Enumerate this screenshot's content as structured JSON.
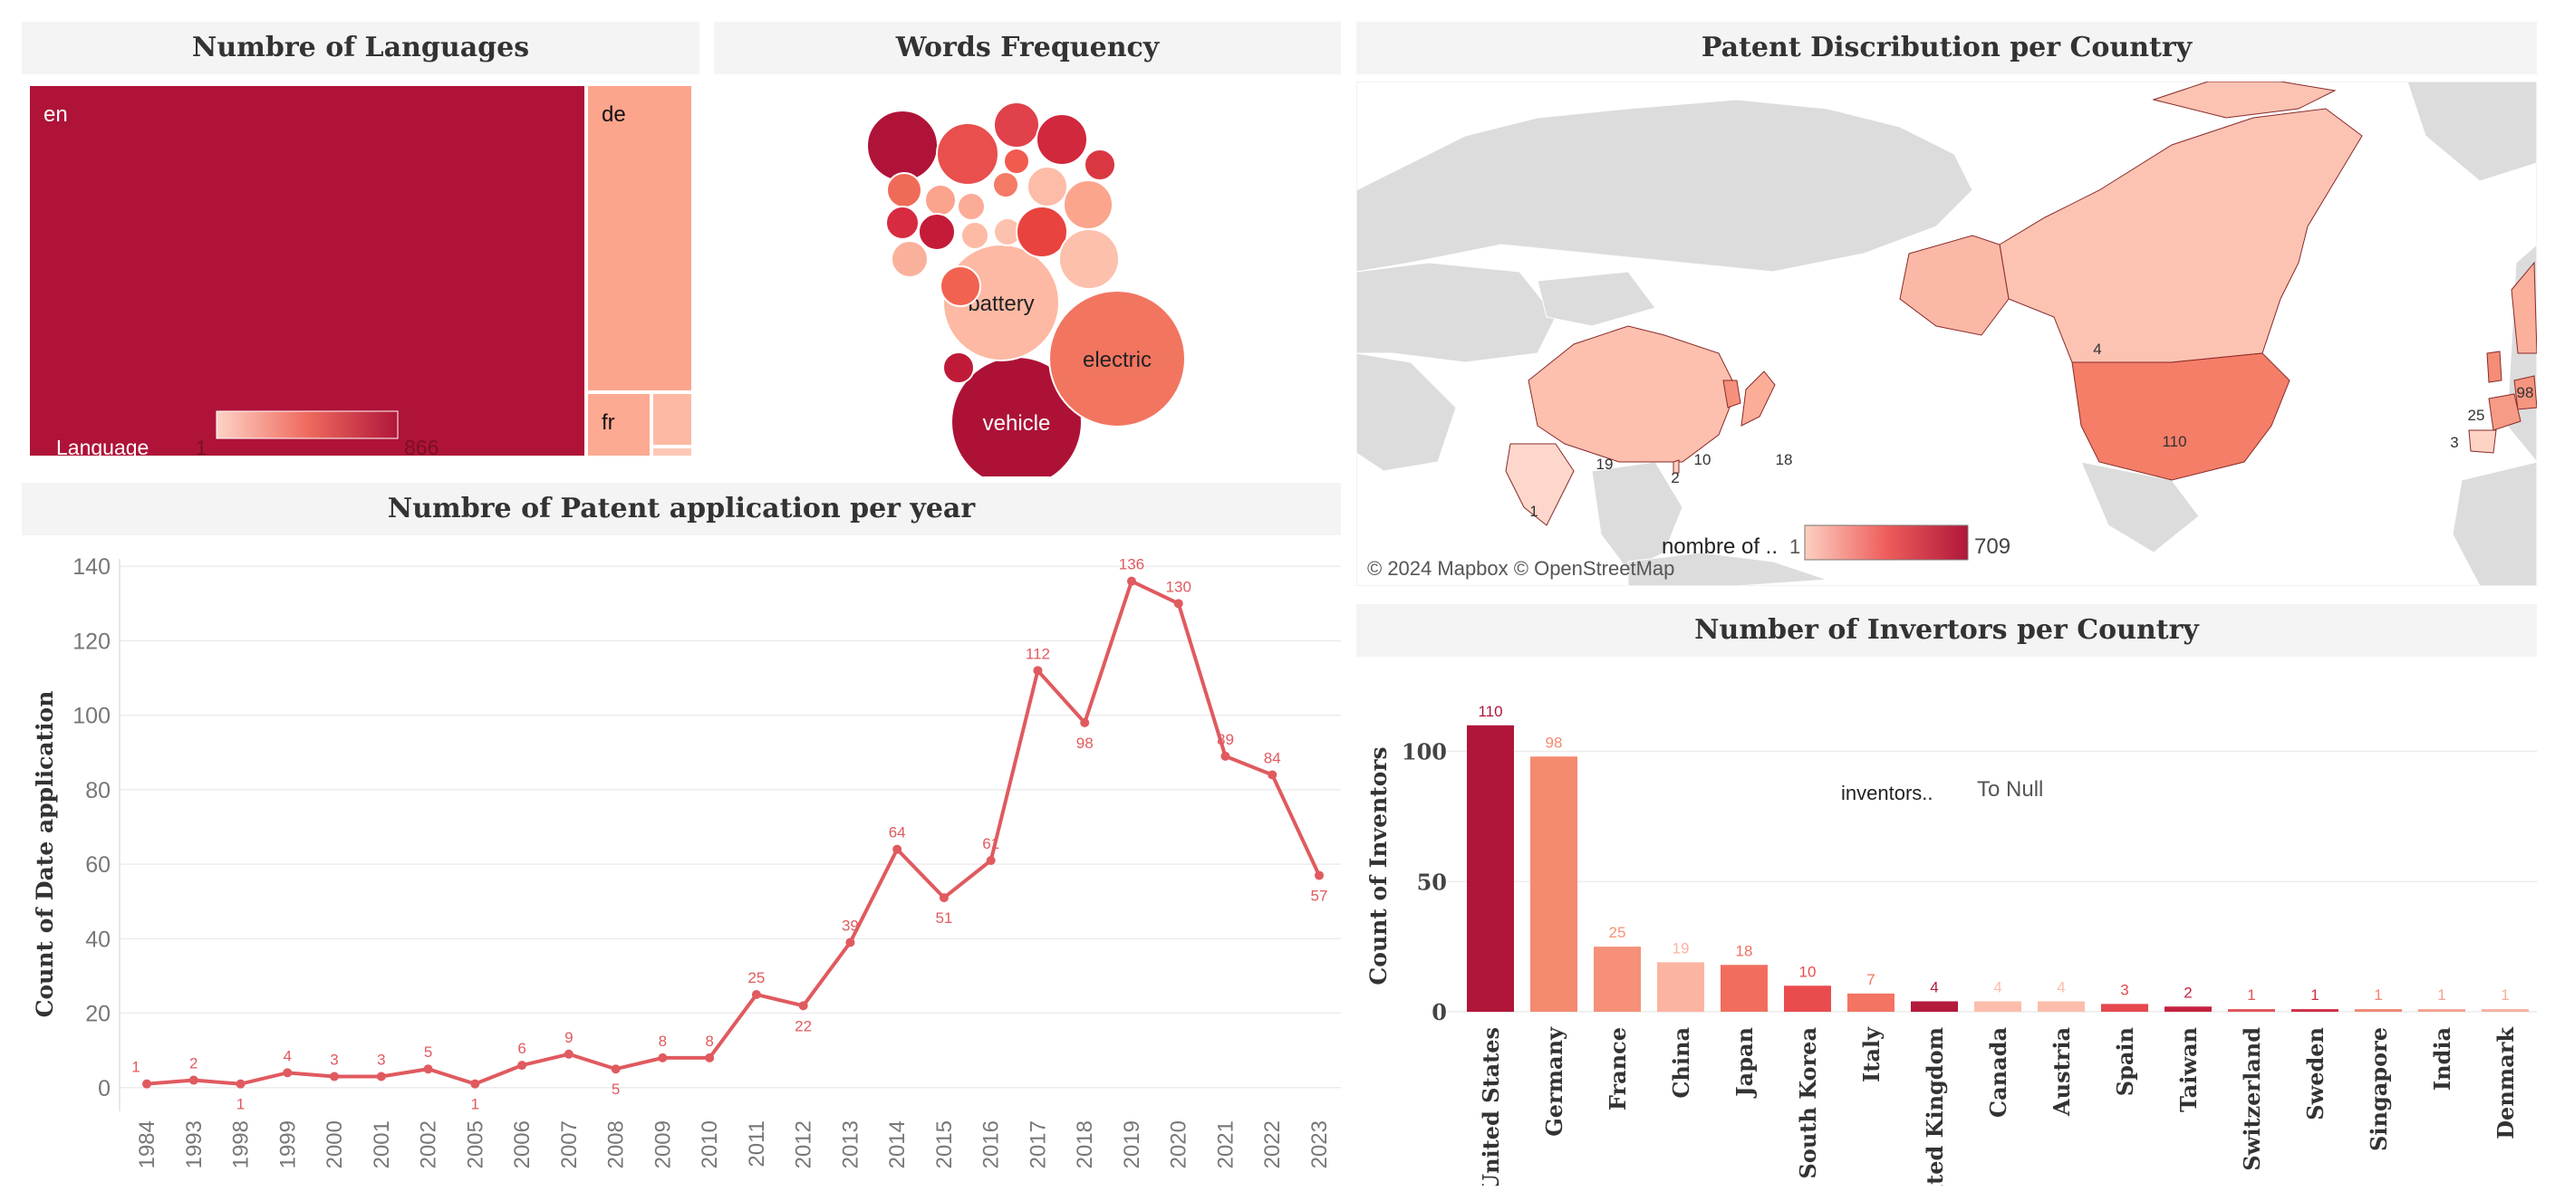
{
  "colors": {
    "accent": "#e05a5f",
    "dark": "#af1338",
    "scale_low": "#fbcbbd",
    "scale_high": "#b0173a"
  },
  "panels": {
    "languages": {
      "title": "Numbre of Languages",
      "legend_label": "Language",
      "legend_min": "1",
      "legend_max": "866"
    },
    "words": {
      "title": "Words Frequency"
    },
    "map": {
      "title": "Patent Discribution per Country",
      "legend_label": "nombre of ..",
      "legend_min": "1",
      "legend_max": "709",
      "attribution": "© 2024 Mapbox © OpenStreetMap"
    },
    "yearly": {
      "title": "Numbre of Patent application per year"
    },
    "inventors": {
      "title": "Number of Invertors per Country",
      "note_label": "inventors..",
      "note_value": "To Null"
    }
  },
  "chart_data": [
    {
      "type": "treemap",
      "title": "Numbre of Languages",
      "items": [
        {
          "label": "en",
          "value": 866
        },
        {
          "label": "de",
          "value": 170
        },
        {
          "label": "fr",
          "value": 32
        },
        {
          "label": "",
          "value": 6
        },
        {
          "label": "",
          "value": 1
        }
      ],
      "legend": {
        "label": "Language",
        "min": 1,
        "max": 866
      }
    },
    {
      "type": "bubble",
      "title": "Words Frequency",
      "bubbles": [
        {
          "label": "vehicle",
          "color": "#ad1236"
        },
        {
          "label": "electric",
          "color": "#f27560"
        },
        {
          "label": "battery",
          "color": "#fdb9a4"
        },
        {
          "label": "",
          "color": "#af1338"
        },
        {
          "label": "",
          "color": "#e84f4d"
        },
        {
          "label": "",
          "color": "#e0414a"
        },
        {
          "label": "",
          "color": "#d1283e"
        },
        {
          "label": "",
          "color": "#ef6b58"
        },
        {
          "label": "",
          "color": "#fca38d"
        },
        {
          "label": "",
          "color": "#fcab96"
        },
        {
          "label": "",
          "color": "#f47b66"
        },
        {
          "label": "",
          "color": "#fdbca8"
        },
        {
          "label": "",
          "color": "#fba58d"
        },
        {
          "label": "",
          "color": "#c41b39"
        },
        {
          "label": "",
          "color": "#d72b41"
        },
        {
          "label": "",
          "color": "#f15a4f"
        },
        {
          "label": "",
          "color": "#fdbba6"
        },
        {
          "label": "",
          "color": "#fdc2ae"
        },
        {
          "label": "",
          "color": "#e8433f"
        },
        {
          "label": "",
          "color": "#fab19c"
        },
        {
          "label": "",
          "color": "#d93843"
        },
        {
          "label": "",
          "color": "#f26250"
        },
        {
          "label": "",
          "color": "#fdc0ac"
        },
        {
          "label": "",
          "color": "#c01a39"
        },
        {
          "label": "",
          "color": "#ab1337"
        }
      ]
    },
    {
      "type": "map",
      "title": "Patent Discribution per Country",
      "regions": [
        {
          "label": "United States",
          "value": 110
        },
        {
          "label": "Canada",
          "value": 4
        },
        {
          "label": "China",
          "value": 19
        },
        {
          "label": "India",
          "value": 1
        },
        {
          "label": "Japan",
          "value": 18
        },
        {
          "label": "South Korea",
          "value": 10
        },
        {
          "label": "Taiwan",
          "value": 2
        },
        {
          "label": "Germany",
          "value": 98
        },
        {
          "label": "France",
          "value": 25
        },
        {
          "label": "Spain",
          "value": 3
        }
      ],
      "legend": {
        "label": "nombre of ..",
        "min": 1,
        "max": 709
      }
    },
    {
      "type": "line",
      "title": "Numbre of Patent application per year",
      "ylabel": "Count of Date application",
      "ylim": [
        -2,
        142
      ],
      "yticks": [
        0,
        20,
        40,
        60,
        80,
        100,
        120,
        140
      ],
      "x": [
        "1984",
        "1993",
        "1998",
        "1999",
        "2000",
        "2001",
        "2002",
        "2005",
        "2006",
        "2007",
        "2008",
        "2009",
        "2010",
        "2011",
        "2012",
        "2013",
        "2014",
        "2015",
        "2016",
        "2017",
        "2018",
        "2019",
        "2020",
        "2021",
        "2022",
        "2023"
      ],
      "values": [
        1,
        2,
        1,
        4,
        3,
        3,
        5,
        1,
        6,
        9,
        5,
        8,
        8,
        25,
        22,
        39,
        64,
        51,
        61,
        112,
        98,
        136,
        130,
        89,
        84,
        57
      ]
    },
    {
      "type": "bar",
      "title": "Number of Invertors per Country",
      "ylabel": "Count of Inventors",
      "ylim": [
        0,
        112
      ],
      "yticks": [
        0,
        50,
        100
      ],
      "categories": [
        "United States",
        "Germany",
        "France",
        "China",
        "Japan",
        "South Korea",
        "Italy",
        "United Kingdom",
        "Canada",
        "Austria",
        "Spain",
        "Taiwan",
        "Switzerland",
        "Sweden",
        "Singapore",
        "India",
        "Denmark"
      ],
      "values": [
        110,
        98,
        25,
        19,
        18,
        10,
        7,
        4,
        4,
        4,
        3,
        2,
        1,
        1,
        1,
        1,
        1
      ],
      "colors": [
        "#b0163a",
        "#f48a70",
        "#f69078",
        "#fcb4a2",
        "#f16e5e",
        "#ea4c4e",
        "#f37463",
        "#b31a3c",
        "#fcbdac",
        "#fcbdac",
        "#e5484d",
        "#c4223e",
        "#e25358",
        "#cf2f45",
        "#f08672",
        "#f5a090",
        "#f8b0a0"
      ]
    }
  ]
}
